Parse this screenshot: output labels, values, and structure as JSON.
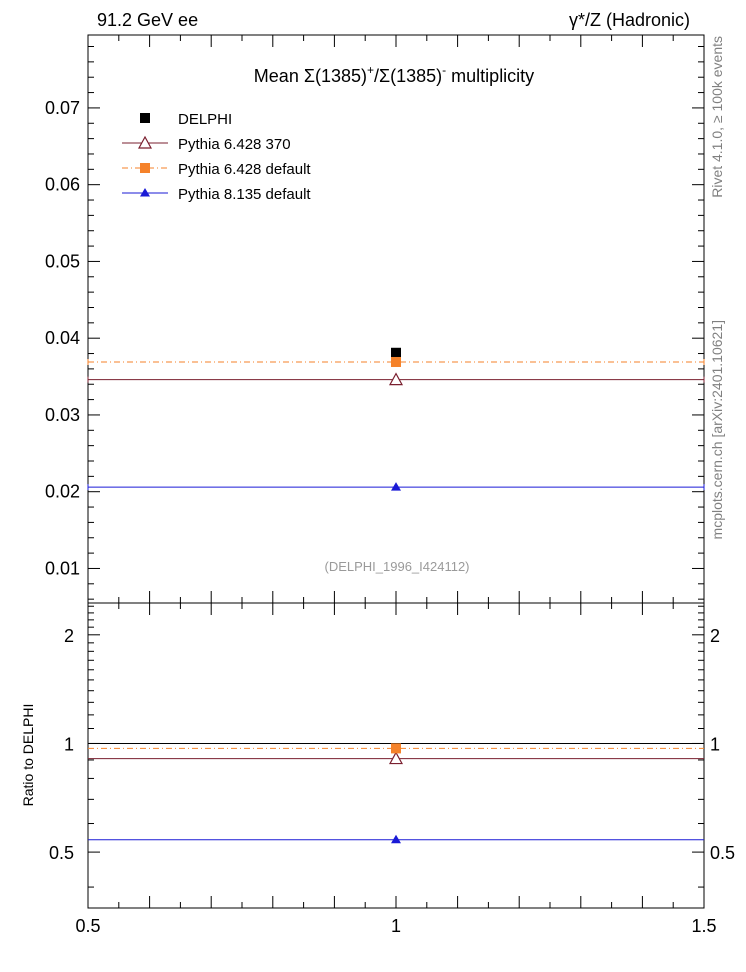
{
  "header": {
    "left": "91.2 GeV ee",
    "right": "γ*/Z (Hadronic)"
  },
  "side_labels": {
    "rivet": "Rivet 4.1.0, ≥ 100k events",
    "mcplots": "mcplots.cern.ch [arXiv:2401.10621]"
  },
  "chart_data": [
    {
      "type": "scatter",
      "panel": "main",
      "title": "Mean Σ(1385)⁺/Σ(1385)⁻ multiplicity",
      "title_parts": {
        "pre": "Mean Σ(1385)",
        "sup1": "+",
        "mid": "/Σ(1385)",
        "sup2": "-",
        "post": " multiplicity"
      },
      "annotation": "(DELPHI_1996_I424112)",
      "xlabel": "",
      "ylabel": "",
      "xlim": [
        0.5,
        1.5
      ],
      "ylim": [
        0.0055,
        0.0795
      ],
      "yticks": [
        0.01,
        0.02,
        0.03,
        0.04,
        0.05,
        0.06,
        0.07
      ],
      "ytick_labels": [
        "0.01",
        "0.02",
        "0.03",
        "0.04",
        "0.05",
        "0.06",
        "0.07"
      ],
      "legend_position": "top-left",
      "grid": false,
      "series": [
        {
          "name": "DELPHI",
          "x": [
            1.0
          ],
          "y": [
            0.0381
          ],
          "xerr": [
            0.0
          ],
          "yerr": [
            0.0006
          ],
          "color": "#000000",
          "marker": "square",
          "line": "none"
        },
        {
          "name": "Pythia 6.428 370",
          "x": [
            1.0
          ],
          "y": [
            0.0346
          ],
          "xerr": [
            0.5
          ],
          "color": "#7a1f2f",
          "marker": "open-triangle",
          "line": "solid"
        },
        {
          "name": "Pythia 6.428 default",
          "x": [
            1.0
          ],
          "y": [
            0.0369
          ],
          "xerr": [
            0.5
          ],
          "yerr": [
            0.0005
          ],
          "color": "#f5822a",
          "marker": "square",
          "line": "dashdot"
        },
        {
          "name": "Pythia 8.135 default",
          "x": [
            1.0
          ],
          "y": [
            0.0206
          ],
          "xerr": [
            0.5
          ],
          "color": "#1a1ad6",
          "marker": "triangle",
          "line": "solid"
        }
      ]
    },
    {
      "type": "scatter",
      "panel": "ratio",
      "xlabel": "",
      "ylabel": "Ratio to DELPHI",
      "xlim": [
        0.5,
        1.5
      ],
      "ylim": [
        0.35,
        2.45
      ],
      "yticks": [
        0.5,
        1,
        2
      ],
      "ytick_labels": [
        "0.5",
        "1",
        "2"
      ],
      "xticks": [
        0.5,
        1,
        1.5
      ],
      "xtick_labels": [
        "0.5",
        "1",
        "1.5"
      ],
      "reference_line": 1.0,
      "series": [
        {
          "name": "Pythia 6.428 370",
          "x": [
            1.0
          ],
          "y": [
            0.908
          ],
          "color": "#7a1f2f",
          "marker": "open-triangle",
          "line": "solid"
        },
        {
          "name": "Pythia 6.428 default",
          "x": [
            1.0
          ],
          "y": [
            0.969
          ],
          "color": "#f5822a",
          "marker": "square",
          "line": "dashdot"
        },
        {
          "name": "Pythia 8.135 default",
          "x": [
            1.0
          ],
          "y": [
            0.541
          ],
          "color": "#1a1ad6",
          "marker": "triangle",
          "line": "solid"
        }
      ]
    }
  ]
}
